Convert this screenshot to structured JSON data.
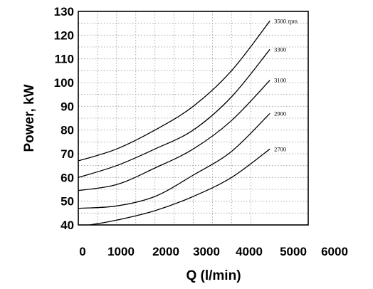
{
  "chart_data": {
    "type": "line",
    "title": "",
    "xlabel": "Q (l/min)",
    "ylabel": "Power, kW",
    "xlim": [
      0,
      6000
    ],
    "ylim": [
      40,
      130
    ],
    "xticks": [
      0,
      1000,
      2000,
      3000,
      4000,
      5000,
      6000
    ],
    "yticks": [
      40,
      50,
      60,
      70,
      80,
      90,
      100,
      110,
      120,
      130
    ],
    "grid": true,
    "series": [
      {
        "name": "3500 rpm",
        "x": [
          0,
          1000,
          2000,
          3000,
          4000,
          5000
        ],
        "y": [
          67,
          72,
          80,
          90,
          105,
          126
        ]
      },
      {
        "name": "3300",
        "x": [
          0,
          1000,
          2000,
          3000,
          4000,
          5000
        ],
        "y": [
          60,
          65,
          72,
          80,
          94,
          114
        ]
      },
      {
        "name": "3100",
        "x": [
          0,
          1000,
          2000,
          3000,
          4000,
          5000
        ],
        "y": [
          54.5,
          57,
          64,
          72,
          84,
          101
        ]
      },
      {
        "name": "2900",
        "x": [
          0,
          1000,
          2000,
          3000,
          4000,
          5000
        ],
        "y": [
          47,
          48,
          52,
          61,
          71,
          87
        ]
      },
      {
        "name": "2700",
        "x": [
          300,
          1000,
          2000,
          3000,
          4000,
          5000
        ],
        "y": [
          40,
          42,
          46,
          52,
          60,
          72
        ]
      }
    ]
  }
}
